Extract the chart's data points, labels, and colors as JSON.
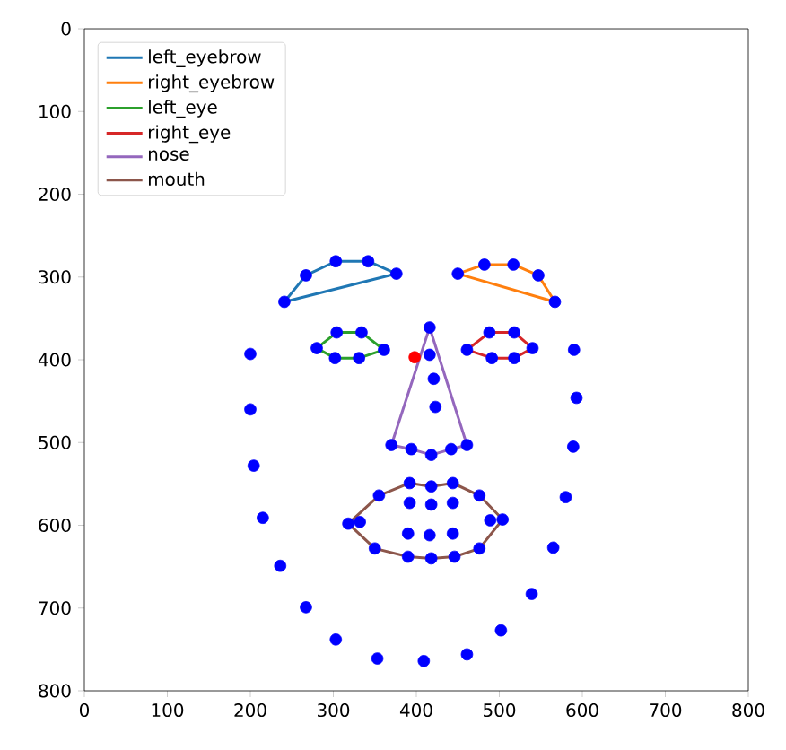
{
  "chart_data": {
    "type": "scatter",
    "xlim": [
      0,
      800
    ],
    "ylim": [
      800,
      0
    ],
    "xticks": [
      0,
      100,
      200,
      300,
      400,
      500,
      600,
      700,
      800
    ],
    "yticks": [
      0,
      100,
      200,
      300,
      400,
      500,
      600,
      700,
      800
    ],
    "legend": "top left",
    "grid": false,
    "series": [
      {
        "marker": "circle",
        "color": "#0000ff",
        "x": [
          200,
          200,
          204,
          215,
          236,
          267,
          303,
          353,
          409,
          461,
          502,
          539,
          565,
          580,
          589,
          593,
          590,
          241,
          267,
          303,
          342,
          376,
          450,
          482,
          517,
          547,
          567,
          416,
          416,
          421,
          423,
          370,
          394,
          418,
          442,
          461,
          280,
          304,
          334,
          361,
          331,
          302,
          461,
          488,
          518,
          540,
          518,
          491,
          318,
          355,
          392,
          418,
          444,
          476,
          504,
          476,
          446,
          418,
          390,
          350,
          332,
          392,
          418,
          444,
          489,
          444,
          416,
          390
        ],
        "values": [
          393,
          460,
          528,
          591,
          649,
          699,
          738,
          761,
          764,
          756,
          727,
          683,
          627,
          566,
          505,
          446,
          388,
          330,
          298,
          281,
          281,
          296,
          296,
          285,
          285,
          298,
          330,
          361,
          394,
          423,
          457,
          503,
          508,
          515,
          508,
          503,
          386,
          367,
          367,
          388,
          398,
          398,
          388,
          367,
          367,
          386,
          398,
          398,
          598,
          564,
          549,
          553,
          549,
          564,
          593,
          628,
          638,
          640,
          638,
          628,
          596,
          573,
          575,
          573,
          594,
          610,
          612,
          610
        ]
      },
      {
        "type": "line",
        "name": "left_eyebrow",
        "color": "#1f77b4",
        "x": [
          241,
          267,
          303,
          342,
          376
        ],
        "values": [
          330,
          298,
          281,
          281,
          296
        ]
      },
      {
        "type": "line",
        "color": "#1f77b4",
        "x": [
          241,
          376
        ],
        "values": [
          330,
          296
        ]
      },
      {
        "type": "line",
        "name": "right_eyebrow",
        "color": "#ff7f0e",
        "x": [
          450,
          482,
          517,
          547,
          567
        ],
        "values": [
          296,
          285,
          285,
          298,
          330
        ]
      },
      {
        "type": "line",
        "color": "#ff7f0e",
        "x": [
          450,
          567
        ],
        "values": [
          296,
          330
        ]
      },
      {
        "type": "line",
        "name": "left_eye",
        "color": "#2ca02c",
        "x": [
          280,
          304,
          334,
          361
        ],
        "values": [
          386,
          367,
          367,
          388
        ]
      },
      {
        "type": "line",
        "color": "#2ca02c",
        "x": [
          280,
          302,
          331,
          361
        ],
        "values": [
          386,
          398,
          398,
          388
        ]
      },
      {
        "type": "line",
        "name": "right_eye",
        "color": "#d62728",
        "x": [
          461,
          488,
          518,
          540
        ],
        "values": [
          388,
          367,
          367,
          386
        ]
      },
      {
        "type": "line",
        "color": "#d62728",
        "x": [
          461,
          491,
          518,
          540
        ],
        "values": [
          388,
          398,
          398,
          386
        ]
      },
      {
        "type": "line",
        "name": "nose",
        "color": "#9467bd",
        "x": [
          370,
          416,
          461
        ],
        "values": [
          503,
          361,
          503
        ]
      },
      {
        "type": "line",
        "color": "#9467bd",
        "x": [
          370,
          394,
          418,
          442,
          461
        ],
        "values": [
          503,
          508,
          515,
          508,
          503
        ]
      },
      {
        "type": "line",
        "name": "mouth",
        "color": "#8c564b",
        "x": [
          318,
          355,
          392,
          418,
          444,
          476,
          504
        ],
        "values": [
          598,
          564,
          549,
          553,
          549,
          564,
          593
        ]
      },
      {
        "type": "line",
        "color": "#8c564b",
        "x": [
          318,
          350,
          390,
          418,
          446,
          476,
          504
        ],
        "values": [
          598,
          628,
          638,
          640,
          638,
          628,
          593
        ]
      },
      {
        "marker": "circle",
        "color": "#ff0000",
        "x": [
          398
        ],
        "values": [
          397
        ]
      }
    ]
  }
}
